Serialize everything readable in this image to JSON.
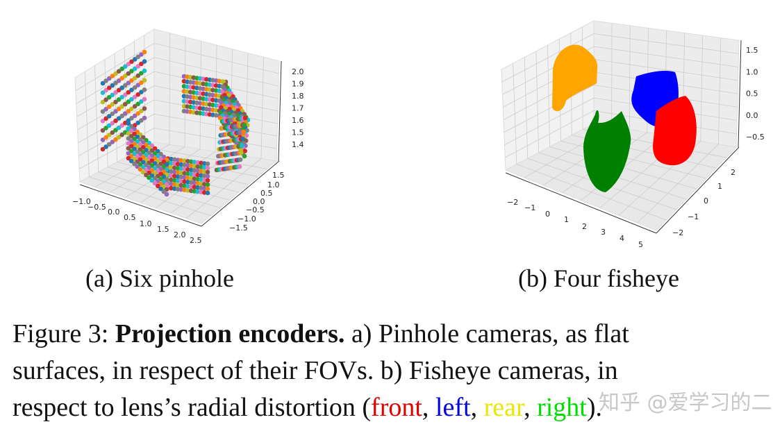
{
  "chart_data": [
    {
      "type": "scatter",
      "projection": "3d",
      "description_printed": "(a) Six pinhole",
      "surfaces": 6,
      "xticks": [
        "−1.0",
        "−0.5",
        "0.0",
        "0.5",
        "1.0",
        "1.5",
        "2.0",
        "2.5"
      ],
      "yticks": [
        "1.5",
        "1.0",
        "0.5",
        "0.0",
        "−0.5",
        "−1.0",
        "−1.5"
      ],
      "zticks": [
        "2.0",
        "1.9",
        "1.8",
        "1.7",
        "1.6",
        "1.5",
        "1.4"
      ],
      "xlim": [
        -1.0,
        2.5
      ],
      "ylim": [
        -1.5,
        1.5
      ],
      "zlim": [
        1.4,
        2.0
      ],
      "grid": true,
      "colors": [
        "#1f77b4",
        "#ff7f0e",
        "#2ca02c",
        "#d62728",
        "#9467bd",
        "#8c564b",
        "#e377c2",
        "#7f7f7f",
        "#bcbd22",
        "#17becf"
      ]
    },
    {
      "type": "scatter",
      "projection": "3d",
      "description_printed": "(b) Four fisheye",
      "xticks": [
        "−2",
        "−1",
        "0",
        "1",
        "2",
        "3",
        "4",
        "5"
      ],
      "yticks": [
        "2",
        "1",
        "0",
        "−1",
        "−2"
      ],
      "zticks": [
        "1.5",
        "1.0",
        "0.5",
        "0.0",
        "−0.5"
      ],
      "xlim": [
        -2,
        5
      ],
      "ylim": [
        -2,
        2
      ],
      "zlim": [
        -0.5,
        1.5
      ],
      "grid": true,
      "series_colors": [
        "#ffa500",
        "#0000ff",
        "#ff0000",
        "#008000"
      ]
    }
  ],
  "subcaptions": {
    "a": "(a) Six pinhole",
    "b": "(b) Four fisheye"
  },
  "caption": {
    "prefix": "Figure 3: ",
    "bold": "Projection encoders.",
    "line1_rest": " a) Pinhole cameras, as flat",
    "line2": "surfaces, in respect of their FOVs.  b) Fisheye cameras, in",
    "line3_pre": "respect to lens’s radial distortion (",
    "front": "front",
    "sep1": ", ",
    "left": "left",
    "sep2": ", ",
    "rear": "rear",
    "sep3": ", ",
    "right": "right",
    "end": ").",
    "colors": {
      "front": "#e00000",
      "left": "#0000e0",
      "rear": "#e8e800",
      "right": "#00dd00"
    }
  },
  "watermark": "知乎 @爱学习的二狗"
}
